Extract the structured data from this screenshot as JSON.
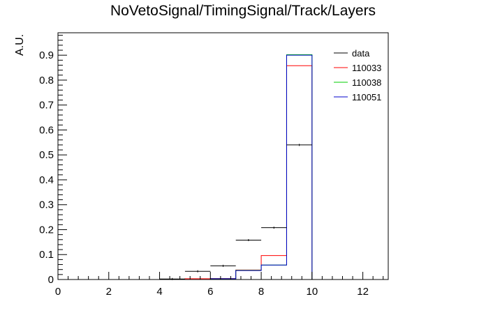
{
  "title": "NoVetoSignal/TimingSignal/Track/Layers",
  "chart_data": {
    "type": "histogram",
    "title": "NoVetoSignal/TimingSignal/Track/Layers",
    "xlabel": "",
    "ylabel": "A.U.",
    "xlim": [
      0,
      13
    ],
    "ylim": [
      0,
      0.99
    ],
    "x_major_ticks": [
      0,
      2,
      4,
      6,
      8,
      10,
      12
    ],
    "x_minor_step": 0.4,
    "y_major_ticks": [
      0,
      0.1,
      0.2,
      0.3,
      0.4,
      0.5,
      0.6,
      0.7,
      0.8,
      0.9
    ],
    "y_minor_step": 0.02,
    "grid": false,
    "legend_position": "top-right",
    "bin_edges": [
      4,
      5,
      6,
      7,
      8,
      9,
      10
    ],
    "series": [
      {
        "name": "data",
        "color": "#000000",
        "style": "points-with-errors",
        "values": [
          0.002,
          0.033,
          0.055,
          0.158,
          0.208,
          0.54
        ]
      },
      {
        "name": "110033",
        "color": "#ff0000",
        "style": "step",
        "values": [
          0.0,
          0.003,
          0.004,
          0.038,
          0.096,
          0.858
        ]
      },
      {
        "name": "110038",
        "color": "#00cc00",
        "style": "step",
        "values": [
          0.0,
          0.0,
          0.003,
          0.037,
          0.058,
          0.902
        ]
      },
      {
        "name": "110051",
        "color": "#0000cc",
        "style": "step",
        "values": [
          0.0,
          0.0,
          0.003,
          0.036,
          0.058,
          0.9
        ]
      }
    ]
  }
}
